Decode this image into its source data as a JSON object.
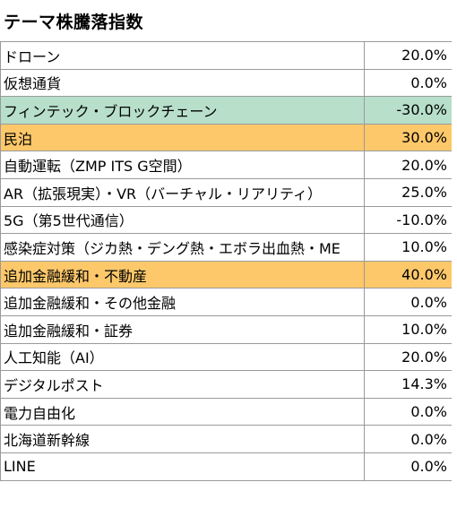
{
  "title": "テーマ株騰落指数",
  "colors": {
    "highlight_green": "#b7dfca",
    "highlight_orange": "#fdc86a",
    "grid": "#9a9a9a"
  },
  "rows": [
    {
      "name": "ドローン",
      "value": "20.0%",
      "highlight": ""
    },
    {
      "name": "仮想通貨",
      "value": "0.0%",
      "highlight": ""
    },
    {
      "name": "フィンテック・ブロックチェーン",
      "value": "-30.0%",
      "highlight": "green"
    },
    {
      "name": "民泊",
      "value": "30.0%",
      "highlight": "orange"
    },
    {
      "name": "自動運転（ZMP ITS G空間）",
      "value": "20.0%",
      "highlight": ""
    },
    {
      "name": "AR（拡張現実）・VR（バーチャル・リアリティ）",
      "value": "25.0%",
      "highlight": ""
    },
    {
      "name": "5G（第5世代通信）",
      "value": "-10.0%",
      "highlight": ""
    },
    {
      "name": "感染症対策（ジカ熱・デング熱・エボラ出血熱・ME",
      "value": "10.0%",
      "highlight": ""
    },
    {
      "name": "追加金融緩和・不動産",
      "value": "40.0%",
      "highlight": "orange"
    },
    {
      "name": "追加金融緩和・その他金融",
      "value": "0.0%",
      "highlight": ""
    },
    {
      "name": "追加金融緩和・証券",
      "value": "10.0%",
      "highlight": ""
    },
    {
      "name": "人工知能（AI）",
      "value": "20.0%",
      "highlight": ""
    },
    {
      "name": "デジタルポスト",
      "value": "14.3%",
      "highlight": ""
    },
    {
      "name": "電力自由化",
      "value": "0.0%",
      "highlight": ""
    },
    {
      "name": "北海道新幹線",
      "value": "0.0%",
      "highlight": ""
    },
    {
      "name": "LINE",
      "value": "0.0%",
      "highlight": ""
    }
  ]
}
